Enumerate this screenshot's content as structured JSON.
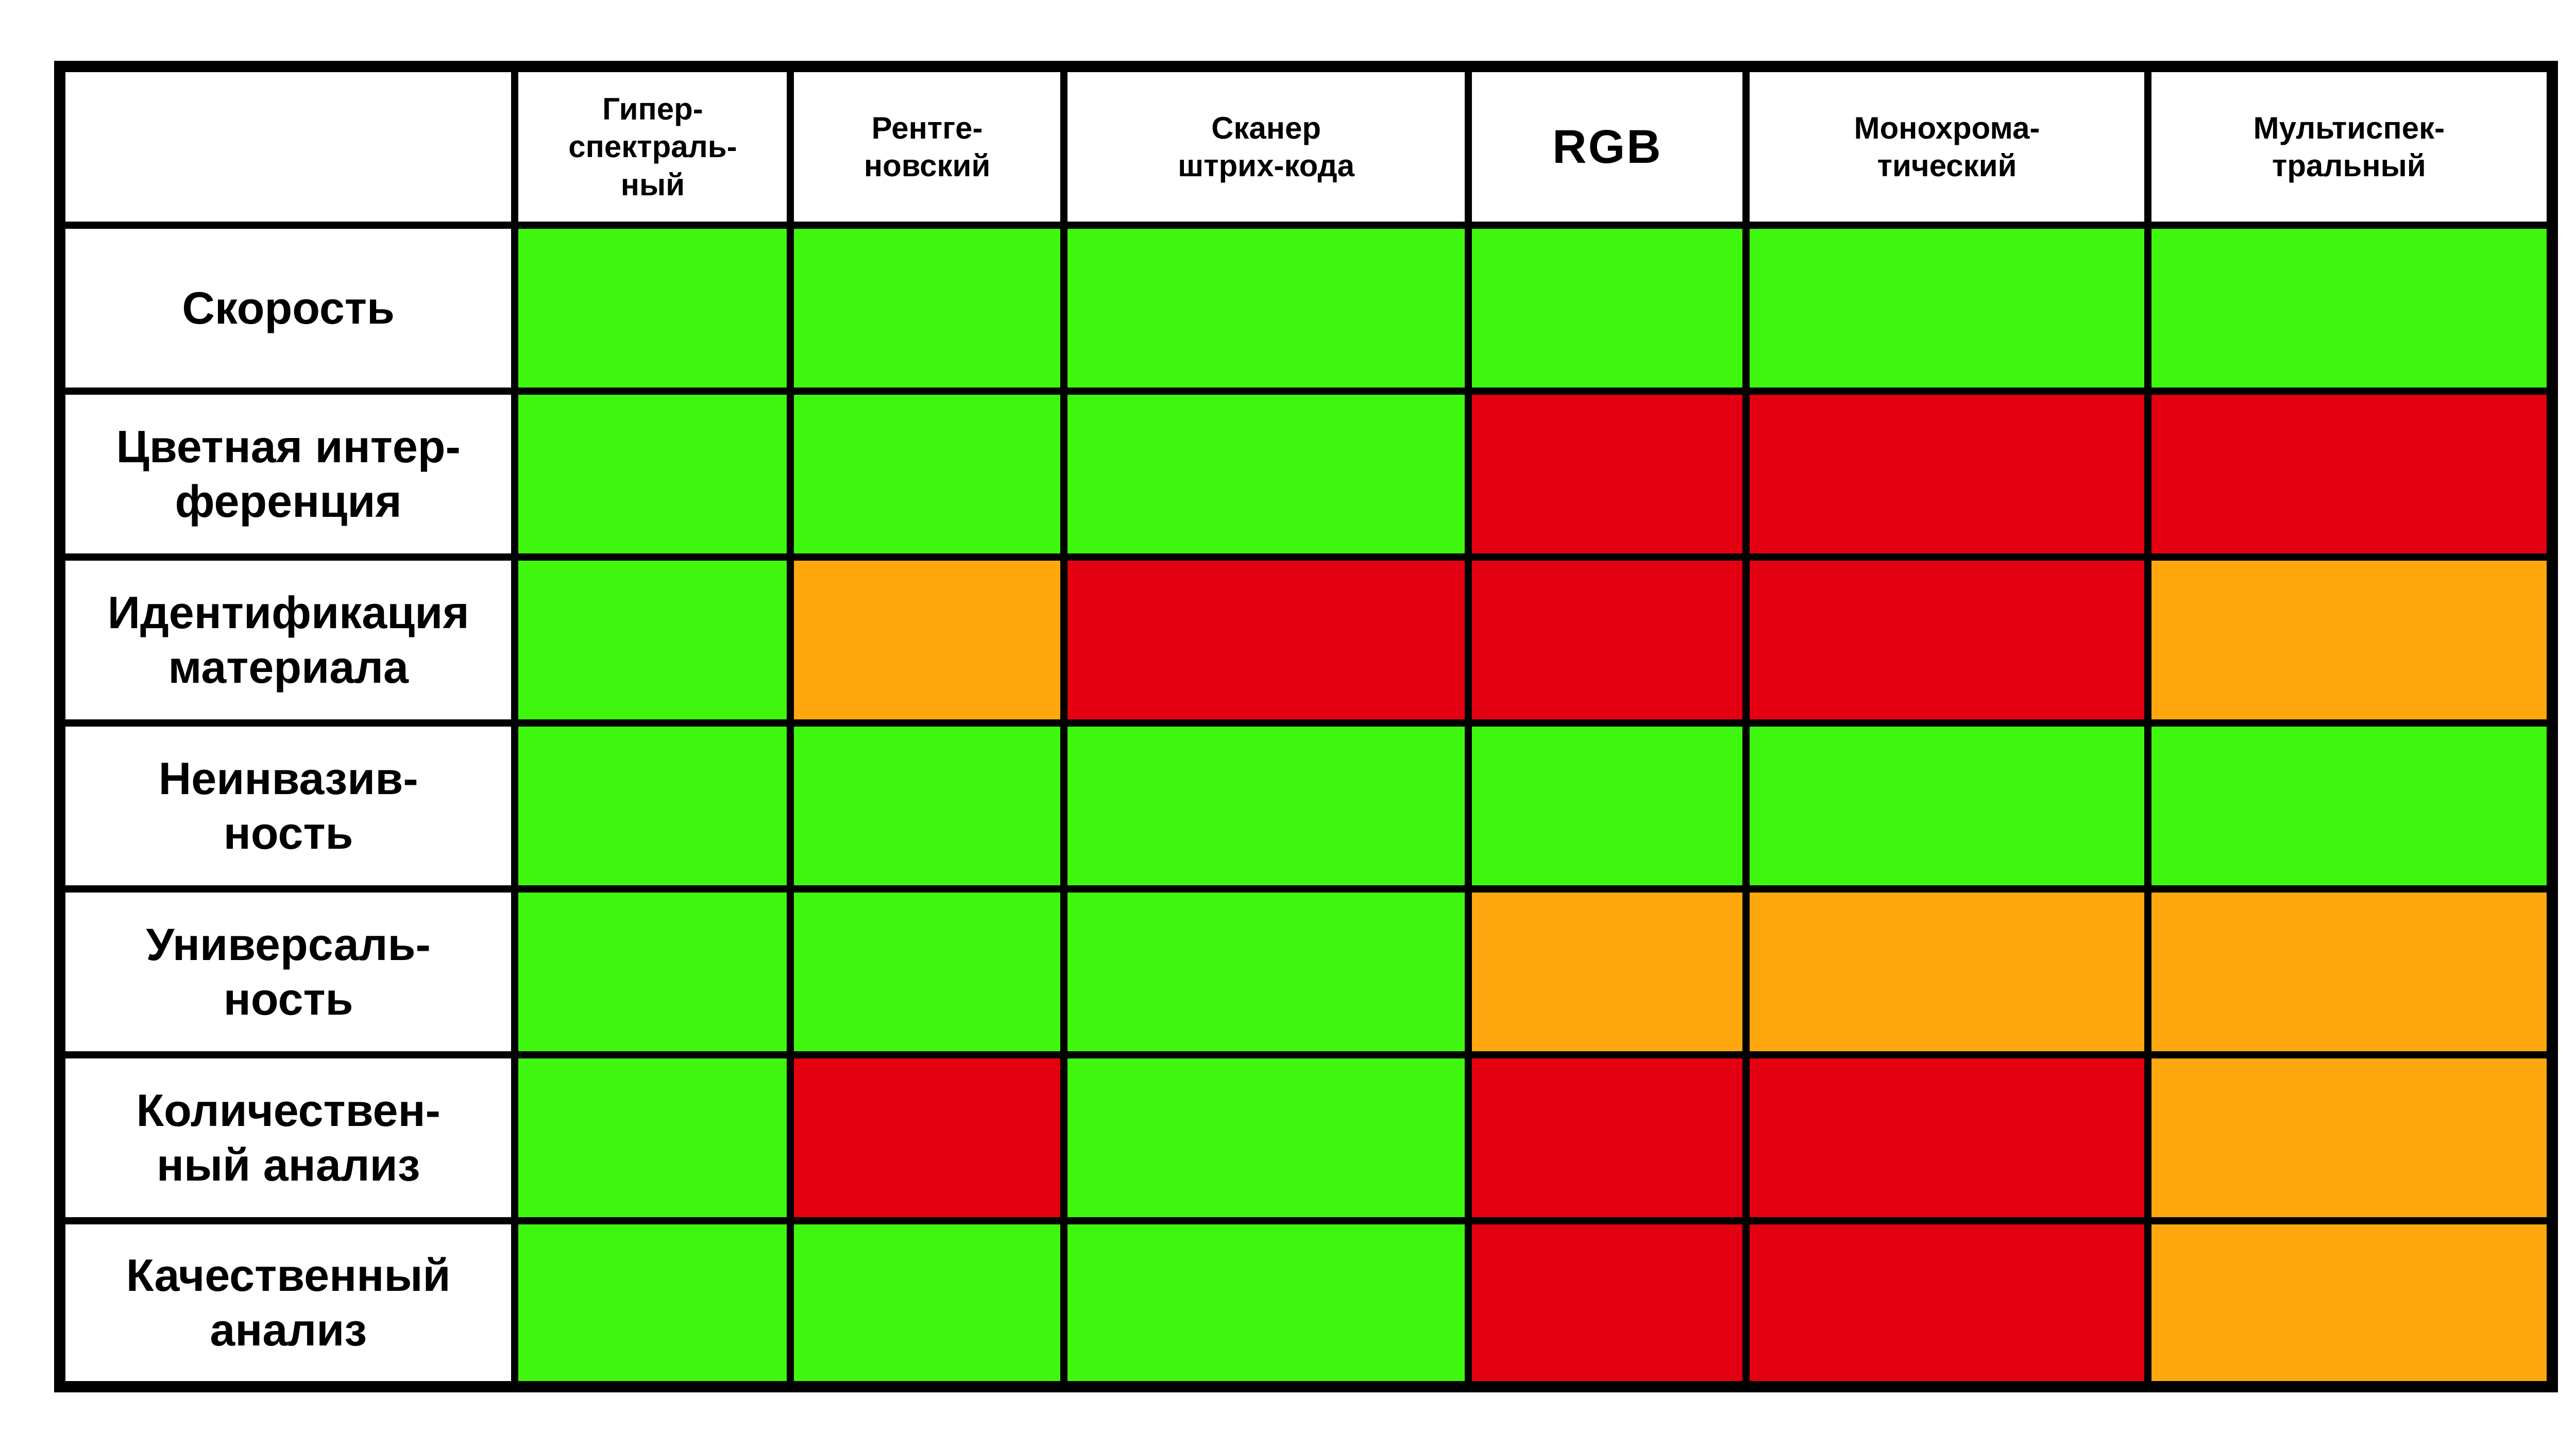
{
  "page": {
    "background": "#ffffff"
  },
  "table": {
    "corner_label": "",
    "columns": [
      {
        "id": "hyperspectral",
        "label": "Гипер-\nспектраль-\nный"
      },
      {
        "id": "xray",
        "label": "Рентге-\nновский"
      },
      {
        "id": "barcode-scanner",
        "label": "Сканер\nштрих-кода"
      },
      {
        "id": "rgb",
        "label": "RGB"
      },
      {
        "id": "monochromatic",
        "label": "Монохрома-\nтический"
      },
      {
        "id": "multispectral",
        "label": "Мультиспек-\nтральный"
      }
    ],
    "rows": [
      {
        "id": "speed",
        "label": "Скорость",
        "cells": [
          "green",
          "green",
          "green",
          "green",
          "green",
          "green"
        ]
      },
      {
        "id": "color-interference",
        "label": "Цветная интер-\nференция",
        "cells": [
          "green",
          "green",
          "green",
          "red",
          "red",
          "red"
        ]
      },
      {
        "id": "material-identification",
        "label": "Идентификация\nматериала",
        "cells": [
          "green",
          "orange",
          "red",
          "red",
          "red",
          "orange"
        ]
      },
      {
        "id": "non-invasiveness",
        "label": "Неинвазив-\nность",
        "cells": [
          "green",
          "green",
          "green",
          "green",
          "green",
          "green"
        ]
      },
      {
        "id": "versatility",
        "label": "Универсаль-\nность",
        "cells": [
          "green",
          "green",
          "green",
          "orange",
          "orange",
          "orange"
        ]
      },
      {
        "id": "quantitative-analysis",
        "label": "Количествен-\nный анализ",
        "cells": [
          "green",
          "red",
          "green",
          "red",
          "red",
          "orange"
        ]
      },
      {
        "id": "qualitative-analysis",
        "label": "Качественный\nанализ",
        "cells": [
          "green",
          "green",
          "green",
          "red",
          "red",
          "orange"
        ]
      }
    ],
    "palette": {
      "green": "#3ff70e",
      "orange": "#ffa70f",
      "red": "#e20011",
      "grid": "#000000",
      "text": "#000000",
      "background": "#ffffff"
    }
  },
  "chart_data": {
    "type": "heatmap",
    "title": "",
    "columns": [
      "Гиперспектральный",
      "Рентгеновский",
      "Сканер штрих-кода",
      "RGB",
      "Монохроматический",
      "Мультиспектральный"
    ],
    "rows": [
      "Скорость",
      "Цветная интерференция",
      "Идентификация материала",
      "Неинвазивность",
      "Универсальность",
      "Количественный анализ",
      "Качественный анализ"
    ],
    "values": [
      [
        "green",
        "green",
        "green",
        "green",
        "green",
        "green"
      ],
      [
        "green",
        "green",
        "green",
        "red",
        "red",
        "red"
      ],
      [
        "green",
        "orange",
        "red",
        "red",
        "red",
        "orange"
      ],
      [
        "green",
        "green",
        "green",
        "green",
        "green",
        "green"
      ],
      [
        "green",
        "green",
        "green",
        "orange",
        "orange",
        "orange"
      ],
      [
        "green",
        "red",
        "green",
        "red",
        "red",
        "orange"
      ],
      [
        "green",
        "green",
        "green",
        "red",
        "red",
        "orange"
      ]
    ],
    "value_colors": {
      "green": "#3ff70e",
      "orange": "#ffa70f",
      "red": "#e20011"
    },
    "legend_position": "none",
    "grid": true
  }
}
